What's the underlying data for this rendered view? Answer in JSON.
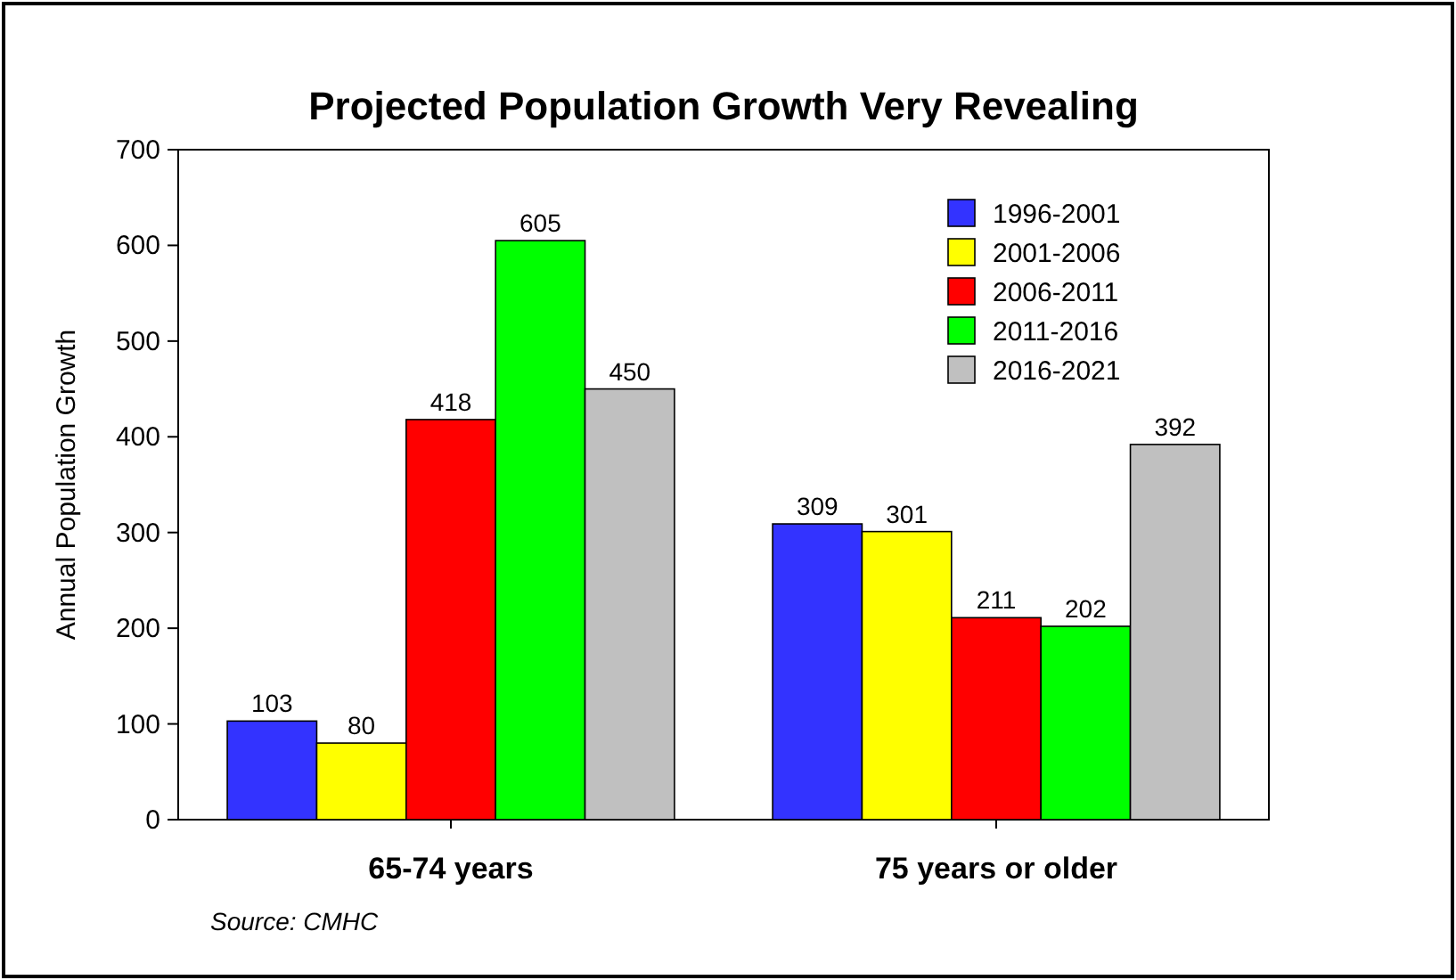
{
  "chart_data": {
    "type": "bar",
    "title": "Projected Population Growth Very Revealing",
    "ylabel": "Annual Population Growth",
    "categories": [
      "65-74 years",
      "75 years or older"
    ],
    "series": [
      {
        "name": "1996-2001",
        "color": "#3333ff",
        "values": [
          103,
          309
        ]
      },
      {
        "name": "2001-2006",
        "color": "#ffff00",
        "values": [
          80,
          301
        ]
      },
      {
        "name": "2006-2011",
        "color": "#ff0000",
        "values": [
          418,
          211
        ]
      },
      {
        "name": "2011-2016",
        "color": "#00ff00",
        "values": [
          605,
          202
        ]
      },
      {
        "name": "2016-2021",
        "color": "#c0c0c0",
        "values": [
          450,
          392
        ]
      }
    ],
    "ylim": [
      0,
      700
    ],
    "yticks": [
      0,
      100,
      200,
      300,
      400,
      500,
      600,
      700
    ],
    "data_labels": true,
    "legend": "top right",
    "grid": false,
    "annotations": [
      "Source: CMHC"
    ]
  }
}
